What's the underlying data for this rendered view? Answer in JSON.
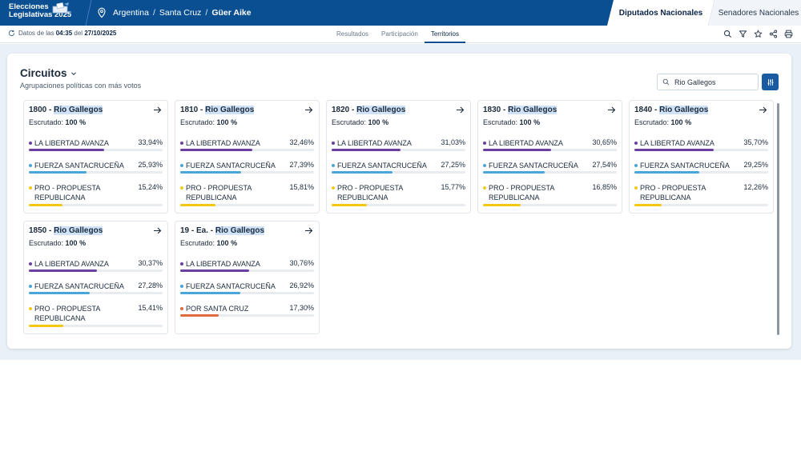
{
  "header": {
    "logo_line1": "Elecciones",
    "logo_line2": "Legislativas 2025",
    "breadcrumb": [
      "Argentina",
      "Santa Cruz",
      "Güer Aike"
    ],
    "breadcrumb_sep": "/",
    "tabs": [
      "Diputados Nacionales",
      "Senadores Nacionales"
    ],
    "active_tab": "Diputados Nacionales",
    "brand_color": "#0a4f91"
  },
  "subbar": {
    "update_prefix": "Datos de las",
    "update_time": "04:35",
    "update_mid": "del",
    "update_date": "27/10/2025",
    "nav": [
      "Resultados",
      "Participación",
      "Territorios"
    ],
    "active_nav": "Territorios",
    "tools": [
      "search-icon",
      "filter-icon",
      "star-icon",
      "share-icon",
      "print-icon"
    ]
  },
  "panel": {
    "title": "Circuitos",
    "subtitle": "Agrupaciones políticas con más votos",
    "search_value": "Rio Gallegos",
    "escrutado_label": "Escrutado:",
    "colors": {
      "LA LIBERTAD AVANZA": "#6b3fa0",
      "FUERZA SANTACRUCEÑA": "#4aa6d8",
      "PRO - PROPUESTA REPUBLICANA": "#f2c814",
      "POR SANTA CRUZ": "#e06a3c"
    },
    "cards": [
      {
        "code": "1800",
        "name": "Rio Gallegos",
        "escrutado": "100 %",
        "parties": [
          {
            "name": "LA LIBERTAD AVANZA",
            "pct": "33,94%",
            "value": 33.94
          },
          {
            "name": "FUERZA SANTACRUCEÑA",
            "pct": "25,93%",
            "value": 25.93
          },
          {
            "name": "PRO - PROPUESTA REPUBLICANA",
            "pct": "15,24%",
            "value": 15.24
          }
        ]
      },
      {
        "code": "1810",
        "name": "Rio Gallegos",
        "escrutado": "100 %",
        "parties": [
          {
            "name": "LA LIBERTAD AVANZA",
            "pct": "32,46%",
            "value": 32.46
          },
          {
            "name": "FUERZA SANTACRUCEÑA",
            "pct": "27,39%",
            "value": 27.39
          },
          {
            "name": "PRO - PROPUESTA REPUBLICANA",
            "pct": "15,81%",
            "value": 15.81
          }
        ]
      },
      {
        "code": "1820",
        "name": "Rio Gallegos",
        "escrutado": "100 %",
        "parties": [
          {
            "name": "LA LIBERTAD AVANZA",
            "pct": "31,03%",
            "value": 31.03
          },
          {
            "name": "FUERZA SANTACRUCEÑA",
            "pct": "27,25%",
            "value": 27.25
          },
          {
            "name": "PRO - PROPUESTA REPUBLICANA",
            "pct": "15,77%",
            "value": 15.77
          }
        ]
      },
      {
        "code": "1830",
        "name": "Rio Gallegos",
        "escrutado": "100 %",
        "parties": [
          {
            "name": "LA LIBERTAD AVANZA",
            "pct": "30,65%",
            "value": 30.65
          },
          {
            "name": "FUERZA SANTACRUCEÑA",
            "pct": "27,54%",
            "value": 27.54
          },
          {
            "name": "PRO - PROPUESTA REPUBLICANA",
            "pct": "16,85%",
            "value": 16.85
          }
        ]
      },
      {
        "code": "1840",
        "name": "Rio Gallegos",
        "escrutado": "100 %",
        "parties": [
          {
            "name": "LA LIBERTAD AVANZA",
            "pct": "35,70%",
            "value": 35.7
          },
          {
            "name": "FUERZA SANTACRUCEÑA",
            "pct": "29,25%",
            "value": 29.25
          },
          {
            "name": "PRO - PROPUESTA REPUBLICANA",
            "pct": "12,26%",
            "value": 12.26
          }
        ]
      },
      {
        "code": "1850",
        "name": "Rio Gallegos",
        "escrutado": "100 %",
        "parties": [
          {
            "name": "LA LIBERTAD AVANZA",
            "pct": "30,37%",
            "value": 30.37
          },
          {
            "name": "FUERZA SANTACRUCEÑA",
            "pct": "27,28%",
            "value": 27.28
          },
          {
            "name": "PRO - PROPUESTA REPUBLICANA",
            "pct": "15,41%",
            "value": 15.41
          }
        ]
      },
      {
        "code": "19 - Ea.",
        "name": "Rio Gallegos",
        "escrutado": "100 %",
        "parties": [
          {
            "name": "LA LIBERTAD AVANZA",
            "pct": "30,76%",
            "value": 30.76
          },
          {
            "name": "FUERZA SANTACRUCEÑA",
            "pct": "26,92%",
            "value": 26.92
          },
          {
            "name": "POR SANTA CRUZ",
            "pct": "17,30%",
            "value": 17.3
          }
        ]
      }
    ]
  }
}
